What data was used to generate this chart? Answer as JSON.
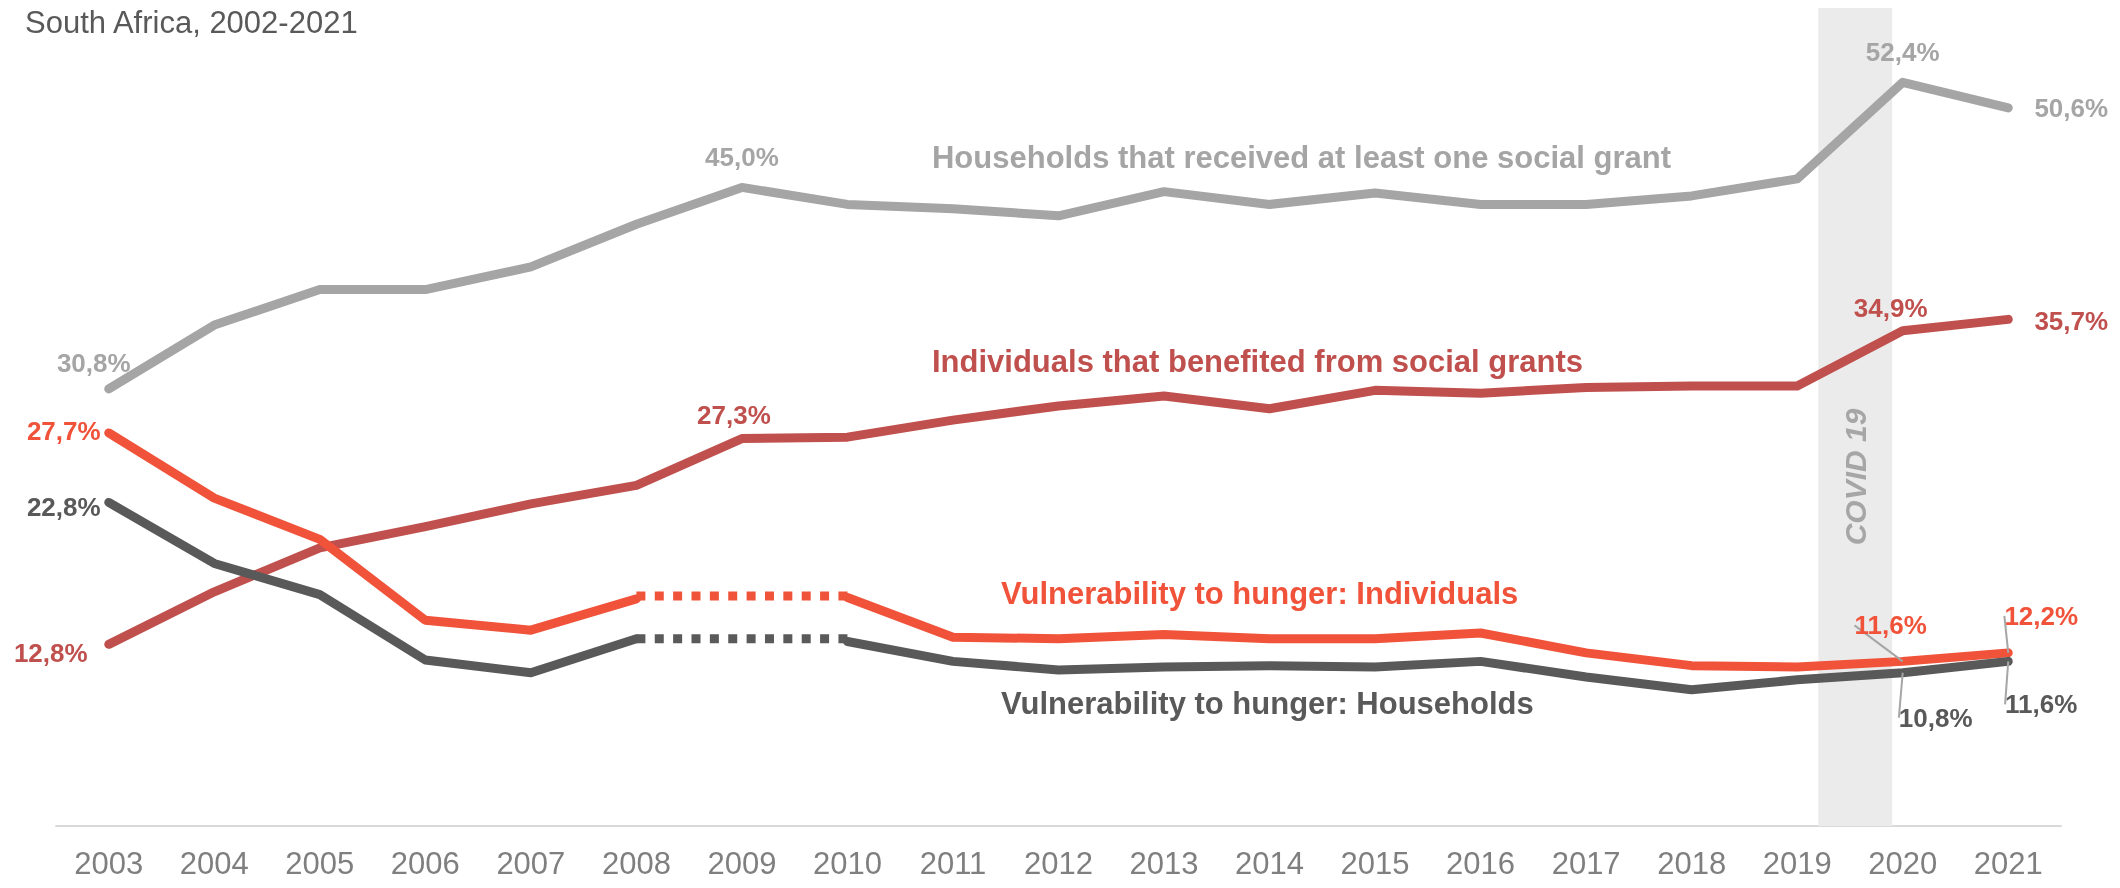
{
  "chart_data": {
    "type": "line",
    "subtitle": "South Africa, 2002-2021",
    "x": [
      2003,
      2004,
      2005,
      2006,
      2007,
      2008,
      2009,
      2010,
      2011,
      2012,
      2013,
      2014,
      2015,
      2016,
      2017,
      2018,
      2019,
      2020,
      2021
    ],
    "xlim": [
      2002.5,
      2021.5
    ],
    "xticks": [
      2003,
      2004,
      2005,
      2006,
      2007,
      2008,
      2009,
      2010,
      2011,
      2012,
      2013,
      2014,
      2015,
      2016,
      2017,
      2018,
      2019,
      2020,
      2021
    ],
    "tick_labels": "x",
    "marker": "none",
    "line_style": "solid",
    "series": [
      {
        "name": "Households that received at least one social grant",
        "color": "#a5a5a5",
        "values": [
          30.8,
          35.3,
          37.8,
          37.8,
          39.4,
          42.4,
          45.0,
          43.8,
          43.5,
          43.0,
          44.7,
          43.8,
          44.6,
          43.8,
          43.8,
          44.4,
          45.6,
          52.4,
          50.6
        ],
        "value_labels": [
          "30,8%",
          null,
          null,
          null,
          null,
          null,
          "45,0%",
          null,
          null,
          null,
          null,
          null,
          null,
          null,
          null,
          null,
          null,
          "52,4%",
          "50,6%"
        ]
      },
      {
        "name": "Individuals that benefited from social grants",
        "color": "#c0504d",
        "values": [
          12.8,
          16.5,
          19.6,
          21.1,
          22.7,
          24.0,
          27.3,
          27.4,
          28.6,
          29.6,
          30.3,
          29.4,
          30.7,
          30.5,
          30.9,
          31.0,
          31.0,
          34.9,
          35.7
        ],
        "value_labels": [
          "12,8%",
          null,
          null,
          null,
          null,
          null,
          "27,3%",
          null,
          null,
          null,
          null,
          null,
          null,
          null,
          null,
          null,
          null,
          "34,9%",
          "35,7%"
        ]
      },
      {
        "name": "Vulnerability to hunger: Individuals",
        "color": "#f0533a",
        "values": [
          27.7,
          23.1,
          20.2,
          14.5,
          13.8,
          16.0,
          null,
          16.1,
          13.3,
          13.2,
          13.5,
          13.2,
          13.2,
          13.6,
          12.2,
          11.3,
          11.2,
          11.6,
          12.2
        ],
        "value_labels": [
          "27,7%",
          null,
          null,
          null,
          null,
          null,
          null,
          null,
          null,
          null,
          null,
          null,
          null,
          null,
          null,
          null,
          null,
          "11,6%",
          "12,2%"
        ]
      },
      {
        "name": "Vulnerability to hunger: Households",
        "color": "#595959",
        "values": [
          22.8,
          18.5,
          16.3,
          11.7,
          10.8,
          13.2,
          null,
          13.0,
          11.6,
          11.0,
          11.2,
          11.3,
          11.2,
          11.6,
          10.5,
          9.6,
          10.3,
          10.8,
          11.6
        ],
        "value_labels": [
          "22,8%",
          null,
          null,
          null,
          null,
          null,
          null,
          null,
          null,
          null,
          null,
          null,
          null,
          null,
          null,
          null,
          null,
          "10,8%",
          "11,6%"
        ]
      },
      {
        "color": "#ef543b",
        "line_style": "dotted",
        "values": [
          null,
          null,
          null,
          null,
          null,
          16.2,
          16.2,
          16.2,
          null,
          null,
          null,
          null,
          null,
          null,
          null,
          null,
          null,
          null,
          null
        ]
      },
      {
        "color": "#5a5a5a",
        "line_style": "dotted",
        "values": [
          null,
          null,
          null,
          null,
          null,
          13.2,
          13.2,
          13.2,
          null,
          null,
          null,
          null,
          null,
          null,
          null,
          null,
          null,
          null,
          null
        ]
      }
    ],
    "bands": [
      {
        "axis": "x",
        "from": 2019.2,
        "to": 2019.9,
        "label": "COVID 19",
        "color": "#ebebeb"
      }
    ]
  }
}
